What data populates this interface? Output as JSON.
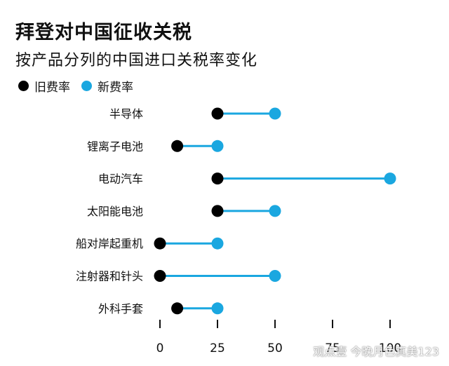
{
  "chart_data": {
    "type": "dumbbell",
    "title": "拜登对中国征收关税",
    "subtitle": "按产品分列的中国进口关税率变化",
    "categories": [
      "半导体",
      "锂离子电池",
      "电动汽车",
      "太阳能电池",
      "船对岸起重机",
      "注射器和针头",
      "外科手套"
    ],
    "series": [
      {
        "name": "旧费率",
        "color": "#000000",
        "values": [
          25,
          7.5,
          25,
          25,
          0,
          0,
          7.5
        ]
      },
      {
        "name": "新费率",
        "color": "#1aa7e0",
        "values": [
          50,
          25,
          100,
          50,
          25,
          50,
          25
        ]
      }
    ],
    "xlim": [
      0,
      100
    ],
    "xticks": [
      0,
      25,
      50,
      75,
      100
    ],
    "xtick_labels": [
      "0",
      "25",
      "50",
      "75",
      "100"
    ],
    "legend_position": "top-left",
    "grid": false
  },
  "watermark": "观点壹 今晚月色真美123",
  "colors": {
    "line": "#1aa7e0",
    "old": "#000000",
    "new": "#1aa7e0"
  }
}
